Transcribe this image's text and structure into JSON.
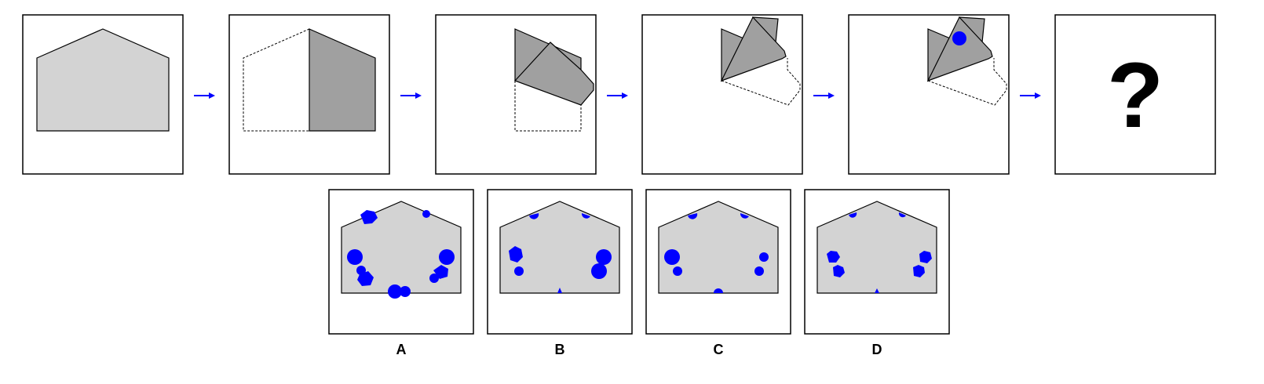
{
  "puzzle": {
    "question_mark": "?",
    "options": [
      {
        "label": "A"
      },
      {
        "label": "B"
      },
      {
        "label": "C"
      },
      {
        "label": "D"
      }
    ]
  },
  "colors": {
    "paper": "#d3d3d3",
    "folded": "#a0a0a0",
    "hole": "#0000ff",
    "arrow": "#0000ff",
    "stroke": "#000000"
  },
  "icons": {
    "arrow": "right-arrow-icon"
  }
}
